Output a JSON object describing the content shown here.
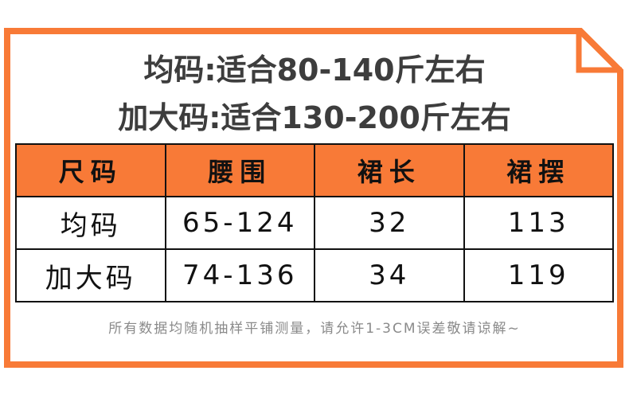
{
  "colors": {
    "frame": "#f87a37",
    "header_bg": "#f87a37",
    "title_text": "#3d3d3d",
    "note_text": "#8a8a8a"
  },
  "titles": [
    "均码:适合80-140斤左右",
    "加大码:适合130-200斤左右"
  ],
  "table": {
    "headers": [
      "尺码",
      "腰围",
      "裙长",
      "裙摆"
    ],
    "rows": [
      [
        "均码",
        "65-124",
        "32",
        "113"
      ],
      [
        "加大码",
        "74-136",
        "34",
        "119"
      ]
    ]
  },
  "note": "所有数据均随机抽样平铺测量，请允许1-3CM误差敬请谅解~"
}
